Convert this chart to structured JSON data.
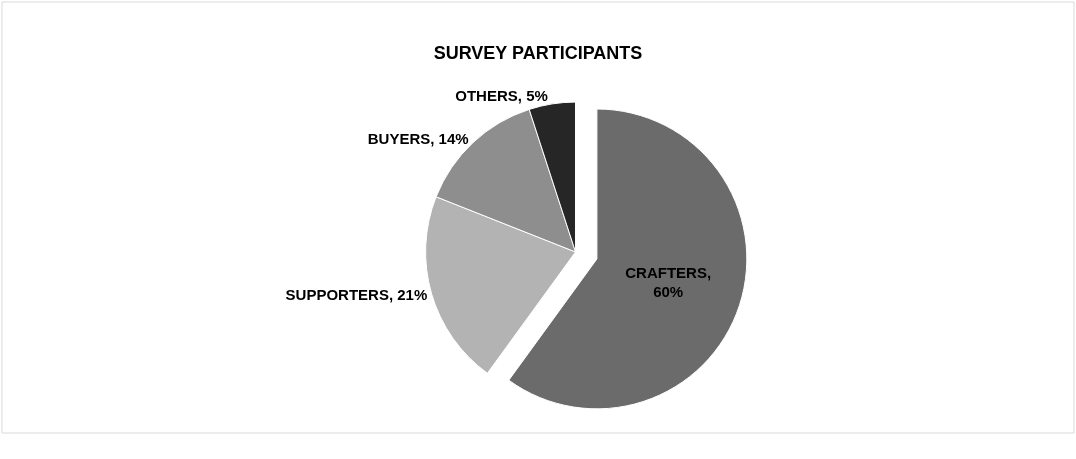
{
  "chart_data": {
    "type": "pie",
    "title": "SURVEY PARTICIPANTS",
    "categories": [
      "CRAFTERS",
      "SUPPORTERS",
      "BUYERS",
      "OTHERS"
    ],
    "values": [
      60,
      21,
      14,
      5
    ],
    "colors": [
      "#6b6b6b",
      "#b3b3b3",
      "#8e8e8e",
      "#262626"
    ],
    "value_labels": [
      ",\n60%",
      ", 21%",
      ", 14%",
      ", 5%"
    ],
    "legend": false
  }
}
